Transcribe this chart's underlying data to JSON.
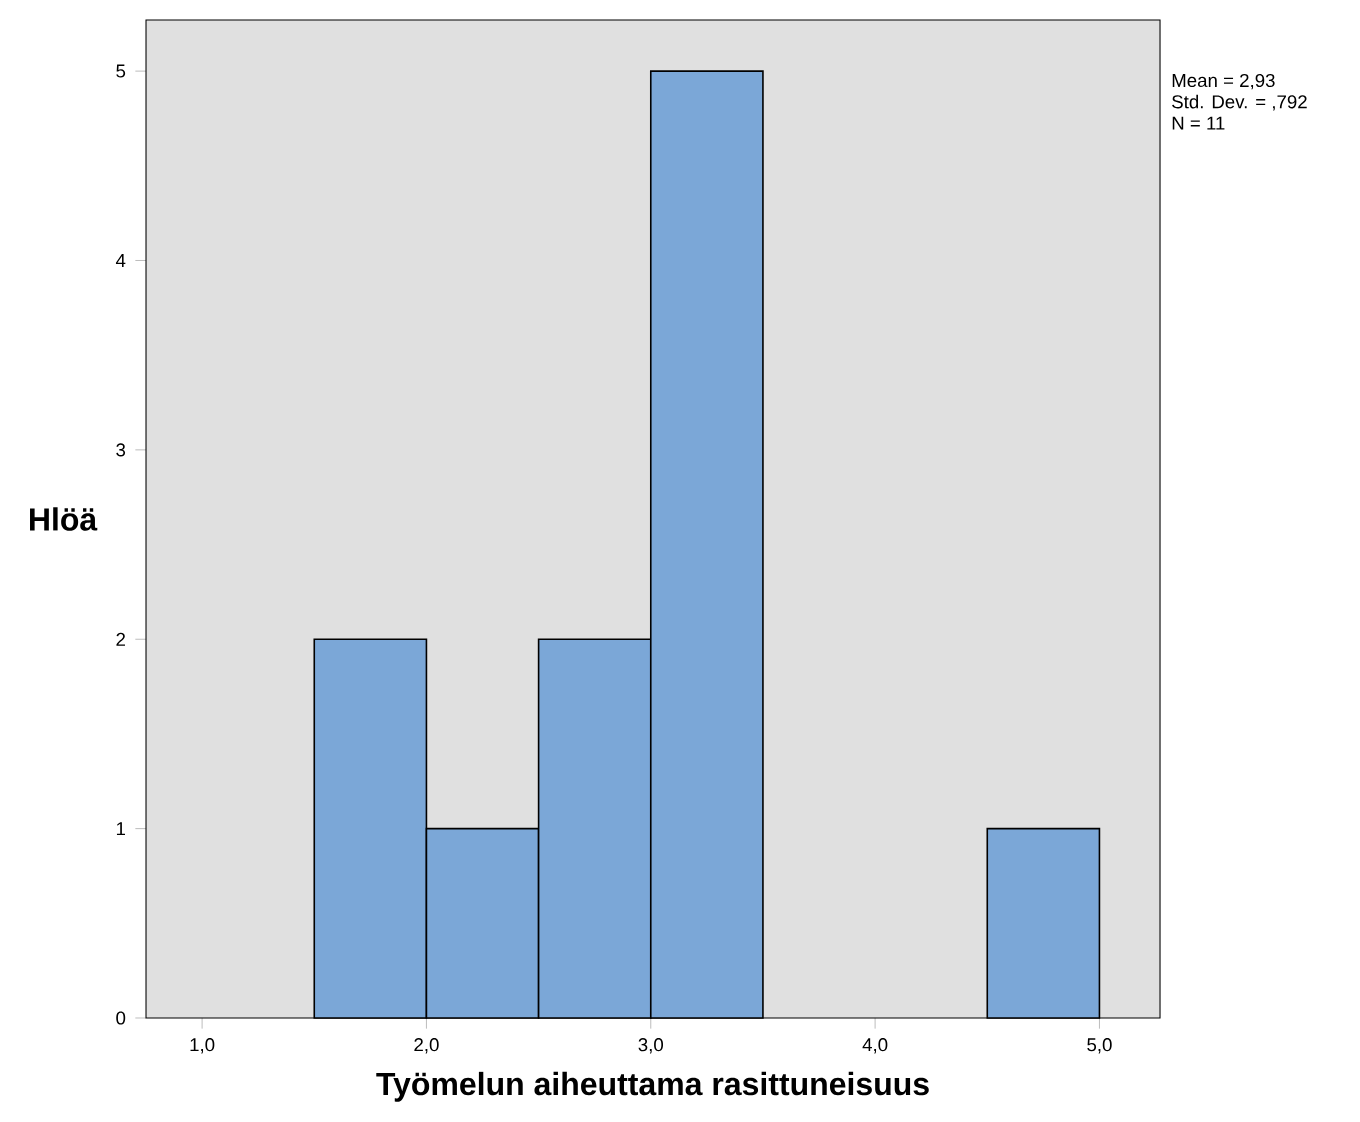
{
  "chart_data": {
    "type": "histogram",
    "xlabel": "Työmelun aiheuttama rasittuneisuus",
    "ylabel": "Hlöä",
    "bins": [
      1.5,
      2.0,
      2.5,
      3.0,
      3.5,
      4.0,
      4.5,
      5.0
    ],
    "values": [
      2,
      1,
      2,
      5,
      0,
      0,
      1
    ],
    "color": "#7ba7d7",
    "xlim": [
      0.75,
      5.27
    ],
    "ylim": [
      0,
      5.27
    ],
    "xticks": [
      {
        "value": 1,
        "label": "1,0"
      },
      {
        "value": 2,
        "label": "2,0"
      },
      {
        "value": 3,
        "label": "3,0"
      },
      {
        "value": 4,
        "label": "4,0"
      },
      {
        "value": 5,
        "label": "5,0"
      }
    ],
    "yticks": [
      0,
      1,
      2,
      3,
      4,
      5
    ],
    "annotations": [
      "Mean = 2,93",
      "Std. Dev. = ,792",
      "N = 11"
    ],
    "grid": false
  }
}
